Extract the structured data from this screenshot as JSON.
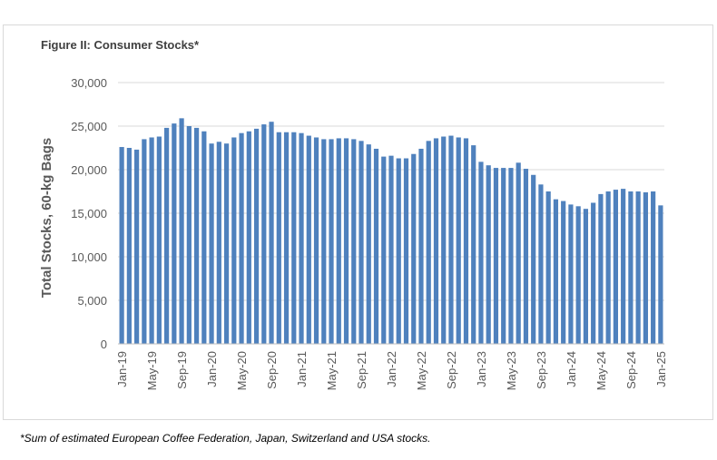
{
  "title": "Figure II: Consumer Stocks*",
  "footnote": "*Sum of estimated European Coffee Federation, Japan, Switzerland and USA stocks.",
  "chart_data": {
    "type": "bar",
    "title": "Figure II: Consumer Stocks*",
    "xlabel": "",
    "ylabel": "Total Stocks, 60-kg Bags",
    "ylim": [
      0,
      30000
    ],
    "yticks": [
      0,
      5000,
      10000,
      15000,
      20000,
      25000,
      30000
    ],
    "ytick_labels": [
      "0",
      "5,000",
      "10,000",
      "15,000",
      "20,000",
      "25,000",
      "30,000"
    ],
    "grid": true,
    "color": "#4f81bd",
    "xtick_labels": [
      "Jan-19",
      "May-19",
      "Sep-19",
      "Jan-20",
      "May-20",
      "Sep-20",
      "Jan-21",
      "May-21",
      "Sep-21",
      "Jan-22",
      "May-22",
      "Sep-22",
      "Jan-23",
      "May-23",
      "Sep-23",
      "Jan-24",
      "May-24",
      "Sep-24",
      "Jan-25"
    ],
    "start": "Jan-19",
    "values": [
      22600,
      22500,
      22300,
      23500,
      23700,
      23800,
      24800,
      25300,
      25900,
      25000,
      24800,
      24400,
      23000,
      23200,
      23000,
      23700,
      24200,
      24400,
      24700,
      25200,
      25500,
      24300,
      24300,
      24300,
      24200,
      23900,
      23700,
      23500,
      23500,
      23600,
      23600,
      23500,
      23300,
      22900,
      22400,
      21500,
      21600,
      21300,
      21300,
      21800,
      22400,
      23300,
      23600,
      23800,
      23900,
      23700,
      23600,
      22800,
      20900,
      20500,
      20200,
      20200,
      20200,
      20800,
      20100,
      19400,
      18300,
      17500,
      16600,
      16400,
      16000,
      15800,
      15500,
      16200,
      17200,
      17500,
      17700,
      17800,
      17500,
      17500,
      17400,
      17500,
      15900
    ]
  }
}
